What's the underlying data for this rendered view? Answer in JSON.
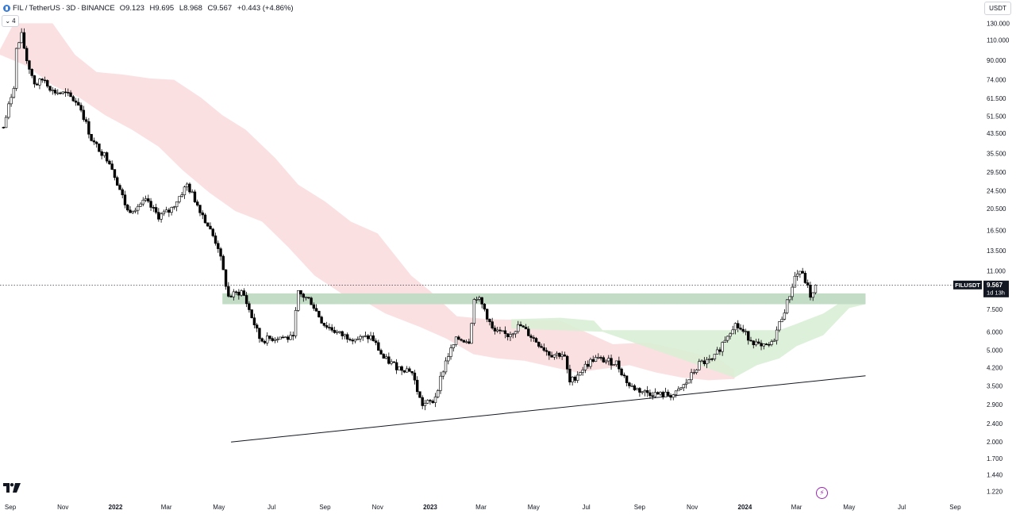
{
  "header": {
    "symbol": "FIL",
    "quote": "TetherUS",
    "interval": "3D",
    "exchange": "BINANCE",
    "sep": "/",
    "dot": "·",
    "open": "O9.123",
    "high": "H9.695",
    "low": "L8.968",
    "close": "C9.567",
    "change": "+0.443 (+4.86%)",
    "indicators_count": "4"
  },
  "currency": "USDT",
  "price_tag": {
    "symbol": "FILUSDT",
    "price": "9.567",
    "countdown": "1d 13h"
  },
  "colors": {
    "up_candle": "#ffffff",
    "down_candle": "#000000",
    "bear_cloud": "#fadadd",
    "bull_cloud": "#d7eed4",
    "support_zone": "#c3dcc6",
    "price_tag": "#131722"
  },
  "icons": {
    "logo": "tradingview-logo-icon",
    "chevron": "chevron-down-icon",
    "flash": "lightning-icon",
    "symbol": "filecoin-coin-icon"
  },
  "chart_data": {
    "type": "candlestick",
    "scale": "log",
    "x_tick_labels": [
      "Sep",
      "Nov",
      "2022",
      "Mar",
      "May",
      "Jul",
      "Sep",
      "Nov",
      "2023",
      "Mar",
      "May",
      "Jul",
      "Sep",
      "Nov",
      "2024",
      "Mar",
      "May",
      "Jul",
      "Sep"
    ],
    "y_tick_labels": [
      "130.000",
      "110.000",
      "90.000",
      "74.000",
      "61.500",
      "51.500",
      "43.500",
      "35.500",
      "29.500",
      "24.500",
      "20.500",
      "16.500",
      "13.500",
      "11.000",
      "7.500",
      "6.000",
      "5.000",
      "4.200",
      "3.500",
      "2.900",
      "2.400",
      "2.000",
      "1.700",
      "1.440",
      "1.220"
    ],
    "ylim": [
      1.17,
      140
    ],
    "x_range": [
      "2021-08-20",
      "2024-10-01"
    ],
    "series": [
      {
        "kind": "price",
        "points": [
          [
            "2021-08-24",
            46
          ],
          [
            "2021-09-05",
            70
          ],
          [
            "2021-09-08",
            100
          ],
          [
            "2021-09-14",
            115
          ],
          [
            "2021-09-20",
            90
          ],
          [
            "2021-09-30",
            70
          ],
          [
            "2021-10-10",
            75
          ],
          [
            "2021-10-20",
            66
          ],
          [
            "2021-11-05",
            64
          ],
          [
            "2021-11-20",
            58
          ],
          [
            "2021-12-05",
            40
          ],
          [
            "2021-12-25",
            33
          ],
          [
            "2022-01-15",
            20
          ],
          [
            "2022-02-05",
            22
          ],
          [
            "2022-02-20",
            19
          ],
          [
            "2022-03-05",
            20
          ],
          [
            "2022-03-25",
            26
          ],
          [
            "2022-04-10",
            20
          ],
          [
            "2022-04-30",
            14
          ],
          [
            "2022-05-12",
            8.5
          ],
          [
            "2022-05-28",
            9
          ],
          [
            "2022-06-18",
            5.5
          ],
          [
            "2022-07-10",
            5.7
          ],
          [
            "2022-07-25",
            5.6
          ],
          [
            "2022-08-01",
            8.8
          ],
          [
            "2022-08-15",
            8.2
          ],
          [
            "2022-08-30",
            6.5
          ],
          [
            "2022-09-20",
            5.8
          ],
          [
            "2022-10-10",
            5.6
          ],
          [
            "2022-10-25",
            5.7
          ],
          [
            "2022-11-08",
            4.6
          ],
          [
            "2022-11-25",
            4.2
          ],
          [
            "2022-12-10",
            4.1
          ],
          [
            "2022-12-22",
            2.9
          ],
          [
            "2023-01-05",
            3.0
          ],
          [
            "2023-01-20",
            4.6
          ],
          [
            "2023-02-01",
            5.6
          ],
          [
            "2023-02-15",
            5.5
          ],
          [
            "2023-02-22",
            8.8
          ],
          [
            "2023-03-05",
            7.5
          ],
          [
            "2023-03-15",
            6.0
          ],
          [
            "2023-04-01",
            5.8
          ],
          [
            "2023-04-15",
            6.4
          ],
          [
            "2023-05-01",
            5.6
          ],
          [
            "2023-05-20",
            4.8
          ],
          [
            "2023-06-05",
            4.8
          ],
          [
            "2023-06-12",
            3.6
          ],
          [
            "2023-06-25",
            4.1
          ],
          [
            "2023-07-10",
            4.6
          ],
          [
            "2023-08-05",
            4.4
          ],
          [
            "2023-08-20",
            3.5
          ],
          [
            "2023-09-05",
            3.3
          ],
          [
            "2023-09-25",
            3.2
          ],
          [
            "2023-10-12",
            3.2
          ],
          [
            "2023-10-25",
            3.6
          ],
          [
            "2023-11-10",
            4.4
          ],
          [
            "2023-11-25",
            4.5
          ],
          [
            "2023-12-10",
            5.7
          ],
          [
            "2023-12-20",
            6.5
          ],
          [
            "2024-01-05",
            5.7
          ],
          [
            "2024-01-20",
            5.1
          ],
          [
            "2024-02-01",
            5.3
          ],
          [
            "2024-02-10",
            6.5
          ],
          [
            "2024-02-20",
            8.2
          ],
          [
            "2024-02-28",
            10.4
          ],
          [
            "2024-03-05",
            11.0
          ],
          [
            "2024-03-12",
            9.8
          ],
          [
            "2024-03-18",
            8.4
          ],
          [
            "2024-03-25",
            9.567
          ]
        ]
      },
      {
        "kind": "ichimoku_cloud_bearish",
        "upper": [
          [
            "2021-08-20",
            100
          ],
          [
            "2021-09-05",
            130
          ],
          [
            "2021-10-20",
            130
          ],
          [
            "2021-11-15",
            95
          ],
          [
            "2021-12-10",
            80
          ],
          [
            "2022-01-10",
            78
          ],
          [
            "2022-02-10",
            75
          ],
          [
            "2022-03-10",
            74
          ],
          [
            "2022-04-10",
            62
          ],
          [
            "2022-05-05",
            52
          ],
          [
            "2022-06-01",
            45
          ],
          [
            "2022-07-05",
            34
          ],
          [
            "2022-08-01",
            26
          ],
          [
            "2022-09-01",
            22
          ],
          [
            "2022-10-01",
            18
          ],
          [
            "2022-11-01",
            16
          ],
          [
            "2022-12-10",
            10.5
          ],
          [
            "2023-01-01",
            9.0
          ],
          [
            "2023-02-01",
            7.0
          ],
          [
            "2023-03-10",
            6.8
          ],
          [
            "2023-06-01",
            6.7
          ],
          [
            "2023-08-01",
            5.3
          ],
          [
            "2023-09-10",
            5.4
          ],
          [
            "2023-10-20",
            5.0
          ],
          [
            "2023-12-01",
            4.6
          ],
          [
            "2023-12-20",
            4.1
          ]
        ],
        "lower": [
          [
            "2021-08-20",
            95
          ],
          [
            "2021-09-20",
            85
          ],
          [
            "2021-10-20",
            70
          ],
          [
            "2021-11-20",
            62
          ],
          [
            "2021-12-20",
            52
          ],
          [
            "2022-01-20",
            45
          ],
          [
            "2022-02-20",
            38
          ],
          [
            "2022-03-20",
            30
          ],
          [
            "2022-04-20",
            24
          ],
          [
            "2022-05-20",
            20
          ],
          [
            "2022-06-20",
            18
          ],
          [
            "2022-07-20",
            14
          ],
          [
            "2022-08-20",
            10.5
          ],
          [
            "2022-09-20",
            8.8
          ],
          [
            "2022-10-20",
            8.0
          ],
          [
            "2022-11-10",
            7.2
          ],
          [
            "2022-12-20",
            6.3
          ],
          [
            "2023-01-20",
            5.6
          ],
          [
            "2023-02-20",
            4.8
          ],
          [
            "2023-03-20",
            4.6
          ],
          [
            "2023-04-20",
            4.5
          ],
          [
            "2023-06-20",
            4.0
          ],
          [
            "2023-08-20",
            4.3
          ],
          [
            "2023-09-20",
            4.0
          ],
          [
            "2023-10-20",
            3.8
          ],
          [
            "2023-11-20",
            3.7
          ],
          [
            "2023-12-20",
            3.75
          ]
        ]
      },
      {
        "kind": "ichimoku_cloud_bullish",
        "upper": [
          [
            "2023-04-05",
            6.8
          ],
          [
            "2023-06-01",
            6.9
          ],
          [
            "2023-07-10",
            6.7
          ],
          [
            "2023-07-20",
            6.1
          ],
          [
            "2024-02-10",
            6.1
          ],
          [
            "2024-03-01",
            6.5
          ],
          [
            "2024-04-01",
            7.2
          ],
          [
            "2024-05-01",
            8.5
          ],
          [
            "2024-05-20",
            8.6
          ]
        ],
        "lower": [
          [
            "2023-04-05",
            6.2
          ],
          [
            "2023-07-20",
            6.0
          ],
          [
            "2023-12-20",
            3.8
          ],
          [
            "2024-01-15",
            4.3
          ],
          [
            "2024-02-10",
            4.6
          ],
          [
            "2024-03-01",
            5.2
          ],
          [
            "2024-04-01",
            5.8
          ],
          [
            "2024-05-01",
            7.6
          ],
          [
            "2024-05-20",
            7.9
          ]
        ]
      },
      {
        "kind": "support_zone",
        "start": "2022-05-05",
        "end": "2024-05-20",
        "low": 7.9,
        "high": 8.8
      },
      {
        "kind": "trendline",
        "points": [
          [
            "2022-05-15",
            2.0
          ],
          [
            "2024-05-20",
            3.87
          ]
        ]
      },
      {
        "kind": "last_price_line",
        "value": 9.567
      }
    ]
  }
}
